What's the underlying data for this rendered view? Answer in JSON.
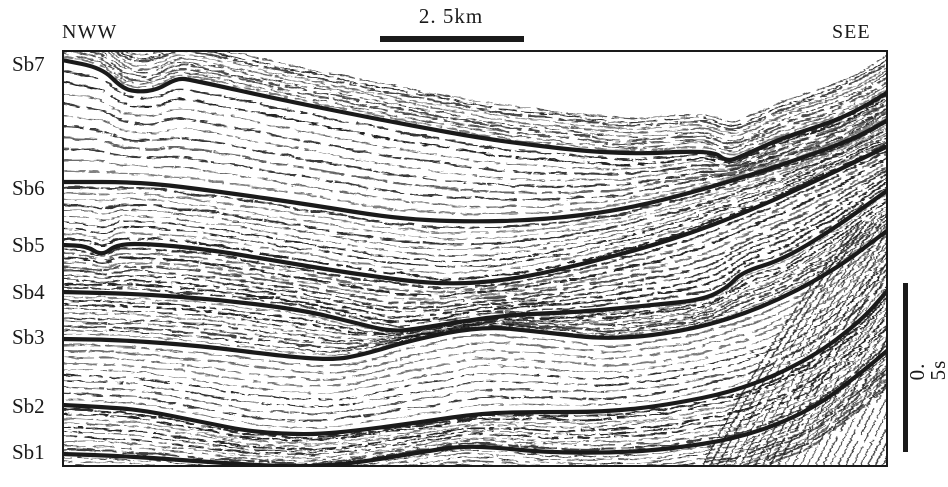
{
  "direction": {
    "left": "NWW",
    "right": "SEE"
  },
  "scale": {
    "horizontal": "2. 5km",
    "vertical": "0. 5s"
  },
  "horizons": [
    {
      "label": "Sb7"
    },
    {
      "label": "Sb6"
    },
    {
      "label": "Sb5"
    },
    {
      "label": "Sb4"
    },
    {
      "label": "Sb3"
    },
    {
      "label": "Sb2"
    },
    {
      "label": "Sb1"
    }
  ],
  "colors": {
    "ink": "#1a1a1a",
    "background": "#ffffff"
  }
}
